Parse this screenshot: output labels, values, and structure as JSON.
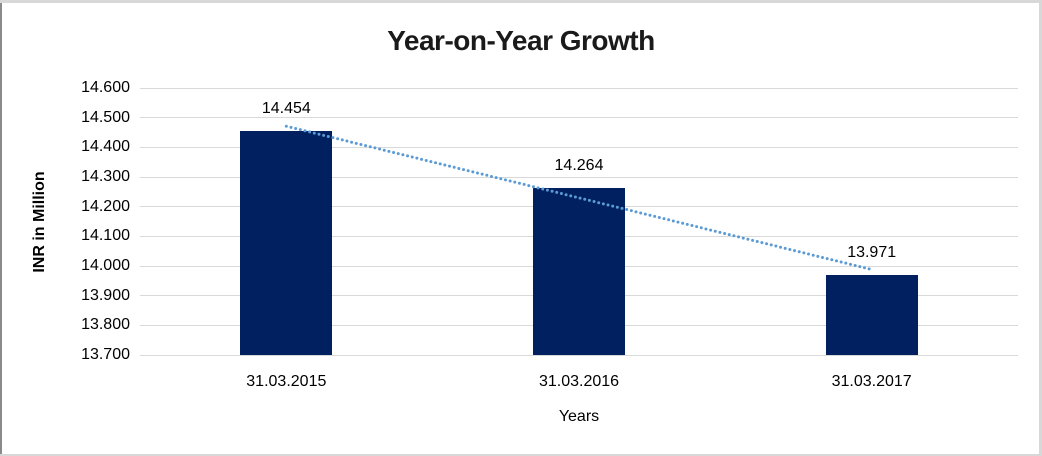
{
  "chart_data": {
    "type": "bar",
    "title": "Year-on-Year Growth",
    "categories": [
      "31.03.2015",
      "31.03.2016",
      "31.03.2017"
    ],
    "values": [
      14.454,
      14.264,
      13.971
    ],
    "value_labels": [
      "14.454",
      "14.264",
      "13.971"
    ],
    "xlabel": "Years",
    "ylabel": "INR in Million",
    "ylim": [
      13.7,
      14.6
    ],
    "ytick_step": 0.1,
    "ytick_labels": [
      "14.600",
      "14.500",
      "14.400",
      "14.300",
      "14.200",
      "14.100",
      "14.000",
      "13.900",
      "13.800",
      "13.700"
    ],
    "grid": true,
    "legend": false,
    "bar_color": "#002060",
    "trendline": {
      "type": "linear",
      "style": "dotted",
      "color": "#5B9BD5"
    },
    "gridline_color": "#D9D9D9",
    "text_color": "#000000"
  }
}
